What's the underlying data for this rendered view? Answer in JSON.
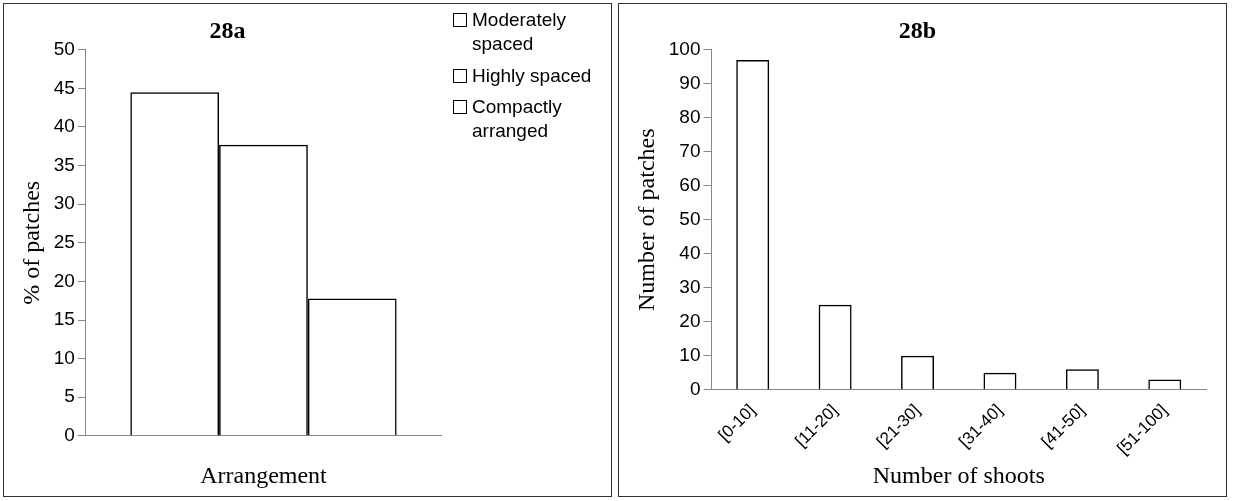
{
  "chart_data": [
    {
      "type": "bar",
      "title": "28a",
      "xlabel": "Arrangement",
      "ylabel": "% of patches",
      "categories": [
        null
      ],
      "series": [
        {
          "name": "Moderately spaced",
          "color": "#000000",
          "values": [
            44.5
          ]
        },
        {
          "name": "Highly spaced",
          "color": "#000000",
          "values": [
            37.7
          ]
        },
        {
          "name": "Compactly arranged",
          "color": "#000000",
          "values": [
            17.8
          ]
        }
      ],
      "ylim": [
        0,
        50
      ],
      "yticks": [
        0,
        5,
        10,
        15,
        20,
        25,
        30,
        35,
        40,
        45,
        50
      ],
      "grid": false,
      "legend": "top right"
    },
    {
      "type": "bar",
      "title": "28b",
      "xlabel": "Number of shoots",
      "ylabel": "Number of patches",
      "categories": [
        "[0-10]",
        "[11-20]",
        "[21-30]",
        "[31-40]",
        "[41-50]",
        "[51-100]"
      ],
      "values": [
        97,
        25,
        10,
        5,
        6,
        3
      ],
      "color": "#000000",
      "ylim": [
        0,
        100
      ],
      "yticks": [
        0,
        10,
        20,
        30,
        40,
        50,
        60,
        70,
        80,
        90,
        100
      ],
      "grid": false
    }
  ]
}
